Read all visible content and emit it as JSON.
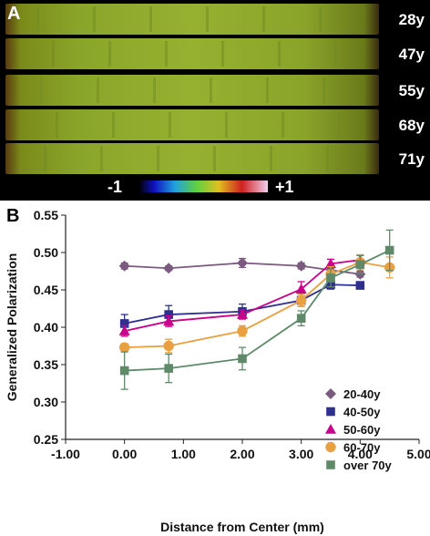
{
  "panel_a": {
    "letter": "A",
    "strips": [
      {
        "label": "28y"
      },
      {
        "label": "47y"
      },
      {
        "label": "55y"
      },
      {
        "label": "68y"
      },
      {
        "label": "71y"
      }
    ],
    "colorbar": {
      "min_label": "-1",
      "max_label": "+1"
    }
  },
  "panel_b": {
    "letter": "B"
  },
  "chart_data": {
    "type": "line",
    "xlabel": "Distance from Center (mm)",
    "ylabel": "Generalized Polarization",
    "xlim": [
      -1.0,
      5.0
    ],
    "ylim": [
      0.25,
      0.55
    ],
    "x_ticks": [
      "-1.00",
      "0.00",
      "1.00",
      "2.00",
      "3.00",
      "4.00",
      "5.00"
    ],
    "y_ticks": [
      "0.25",
      "0.30",
      "0.35",
      "0.40",
      "0.45",
      "0.50",
      "0.55"
    ],
    "legend_position": "bottom-right",
    "series": [
      {
        "name": "20-40y",
        "color": "#7a5a7e",
        "marker": "diamond",
        "x": [
          0,
          0.75,
          2,
          3,
          4
        ],
        "y": [
          0.482,
          0.479,
          0.486,
          0.482,
          0.471
        ],
        "err": [
          0.004,
          0.003,
          0.006,
          0.004,
          0.004
        ]
      },
      {
        "name": "40-50y",
        "color": "#2e2f8f",
        "marker": "square",
        "x": [
          0,
          0.75,
          2,
          3,
          3.5,
          4
        ],
        "y": [
          0.405,
          0.417,
          0.421,
          0.436,
          0.457,
          0.456
        ],
        "err": [
          0.012,
          0.012,
          0.01,
          0.008,
          0.006,
          0.004
        ]
      },
      {
        "name": "50-60y",
        "color": "#c8008c",
        "marker": "triangle",
        "x": [
          0,
          0.75,
          2,
          3,
          3.5,
          4
        ],
        "y": [
          0.395,
          0.408,
          0.417,
          0.451,
          0.485,
          0.49
        ],
        "err": [
          0.007,
          0.007,
          0.006,
          0.01,
          0.006,
          0.006
        ]
      },
      {
        "name": "60-70y",
        "color": "#e8a040",
        "marker": "circle",
        "x": [
          0,
          0.75,
          2,
          3,
          3.5,
          4,
          4.5
        ],
        "y": [
          0.373,
          0.375,
          0.395,
          0.436,
          0.471,
          0.487,
          0.48
        ],
        "err": [
          0.005,
          0.009,
          0.007,
          0.008,
          0.01,
          0.01,
          0.014
        ]
      },
      {
        "name": "over 70y",
        "color": "#5e8a6a",
        "marker": "square",
        "x": [
          0,
          0.75,
          2,
          3,
          3.5,
          4,
          4.5
        ],
        "y": [
          0.342,
          0.345,
          0.358,
          0.412,
          0.466,
          0.484,
          0.503
        ],
        "err": [
          0.025,
          0.019,
          0.015,
          0.01,
          0.012,
          0.012,
          0.027
        ]
      }
    ]
  },
  "colors": {
    "background_a": "#000000",
    "axis": "#222222"
  }
}
